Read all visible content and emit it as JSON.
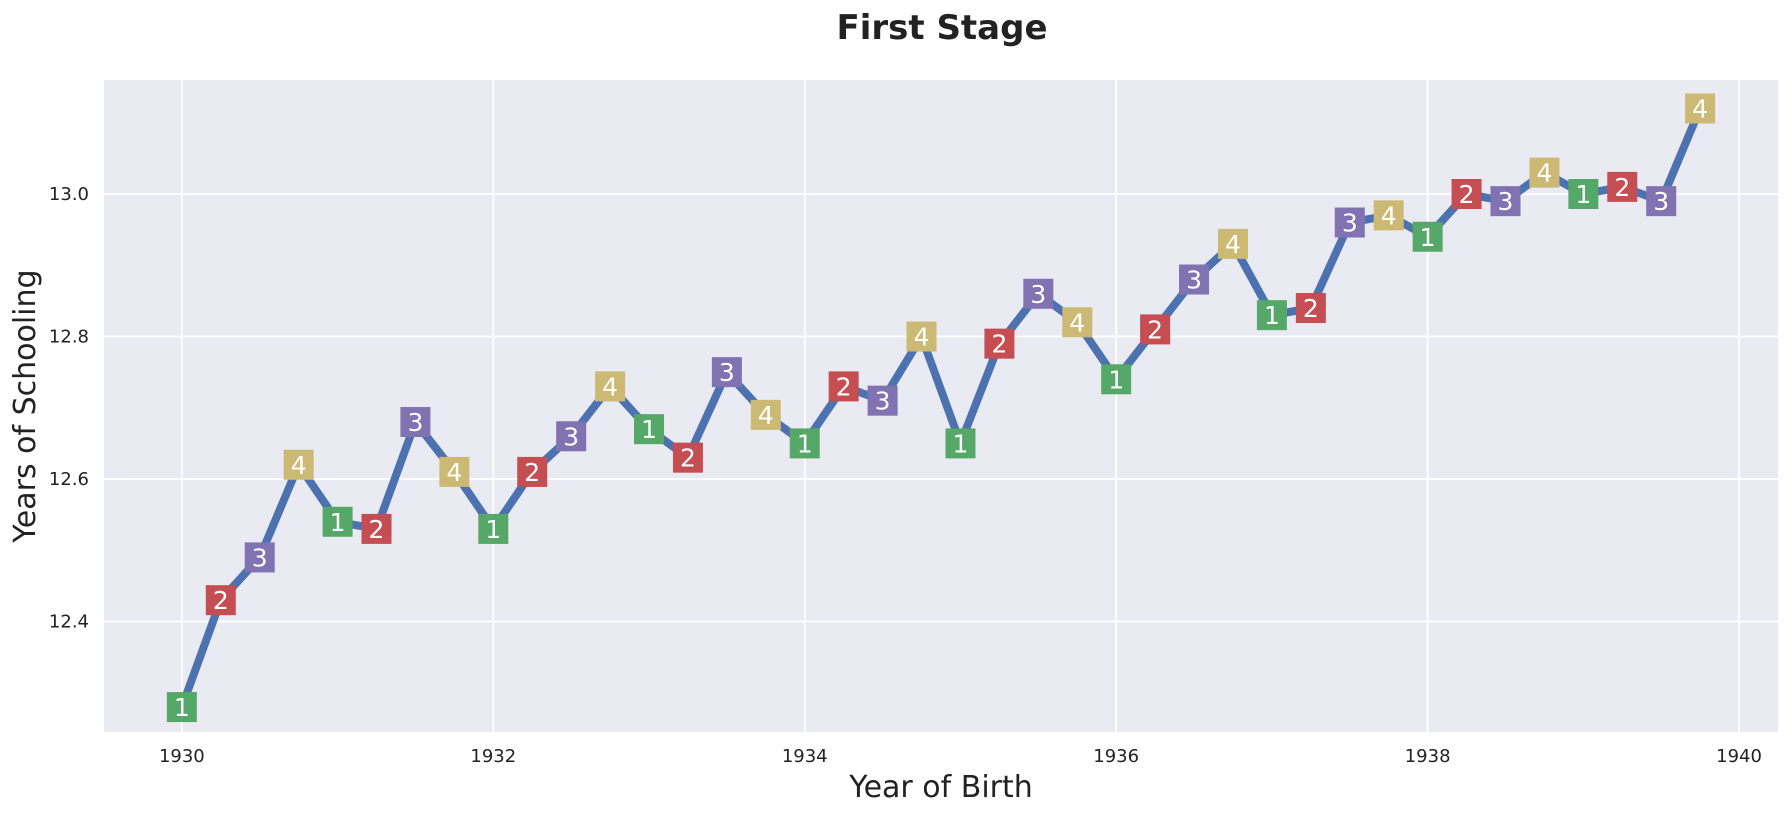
{
  "chart_data": {
    "type": "line",
    "title": "First Stage",
    "xlabel": "Year of Birth",
    "ylabel": "Years of Schooling",
    "xlim": [
      1929.5,
      1940.25
    ],
    "ylim": [
      12.245,
      13.16
    ],
    "xticks": [
      1930,
      1932,
      1934,
      1936,
      1938,
      1940
    ],
    "yticks": [
      12.4,
      12.6,
      12.8,
      13.0
    ],
    "xtick_labels": [
      "1930",
      "1932",
      "1934",
      "1936",
      "1938",
      "1940"
    ],
    "ytick_labels": [
      "12.4",
      "12.6",
      "12.8",
      "13.0"
    ],
    "grid": true,
    "colors": {
      "background": "#EAEAF2",
      "grid": "#FFFFFF",
      "line": "#4C72B0",
      "quarter_1": "#55A868",
      "quarter_2": "#C44E52",
      "quarter_3": "#8172B2",
      "quarter_4": "#CCB974"
    },
    "series": [
      {
        "x": [
          1930.0,
          1930.25,
          1930.5,
          1930.75,
          1931.0,
          1931.25,
          1931.5,
          1931.75,
          1932.0,
          1932.25,
          1932.5,
          1932.75,
          1933.0,
          1933.25,
          1933.5,
          1933.75,
          1934.0,
          1934.25,
          1934.5,
          1934.75,
          1935.0,
          1935.25,
          1935.5,
          1935.75,
          1936.0,
          1936.25,
          1936.5,
          1936.75,
          1937.0,
          1937.25,
          1937.5,
          1937.75,
          1938.0,
          1938.25,
          1938.5,
          1938.75,
          1939.0,
          1939.25,
          1939.5,
          1939.75
        ],
        "y": [
          12.28,
          12.43,
          12.49,
          12.62,
          12.54,
          12.53,
          12.68,
          12.61,
          12.53,
          12.61,
          12.66,
          12.73,
          12.67,
          12.63,
          12.75,
          12.69,
          12.65,
          12.73,
          12.71,
          12.8,
          12.65,
          12.79,
          12.86,
          12.82,
          12.74,
          12.81,
          12.88,
          12.93,
          12.83,
          12.84,
          12.96,
          12.97,
          12.94,
          13.0,
          12.99,
          13.03,
          13.0,
          13.01,
          12.99,
          13.12
        ],
        "markers": [
          "1",
          "2",
          "3",
          "4",
          "1",
          "2",
          "3",
          "4",
          "1",
          "2",
          "3",
          "4",
          "1",
          "2",
          "3",
          "4",
          "1",
          "2",
          "3",
          "4",
          "1",
          "2",
          "3",
          "4",
          "1",
          "2",
          "3",
          "4",
          "1",
          "2",
          "3",
          "4",
          "1",
          "2",
          "3",
          "4",
          "1",
          "2",
          "3",
          "4"
        ]
      }
    ]
  }
}
